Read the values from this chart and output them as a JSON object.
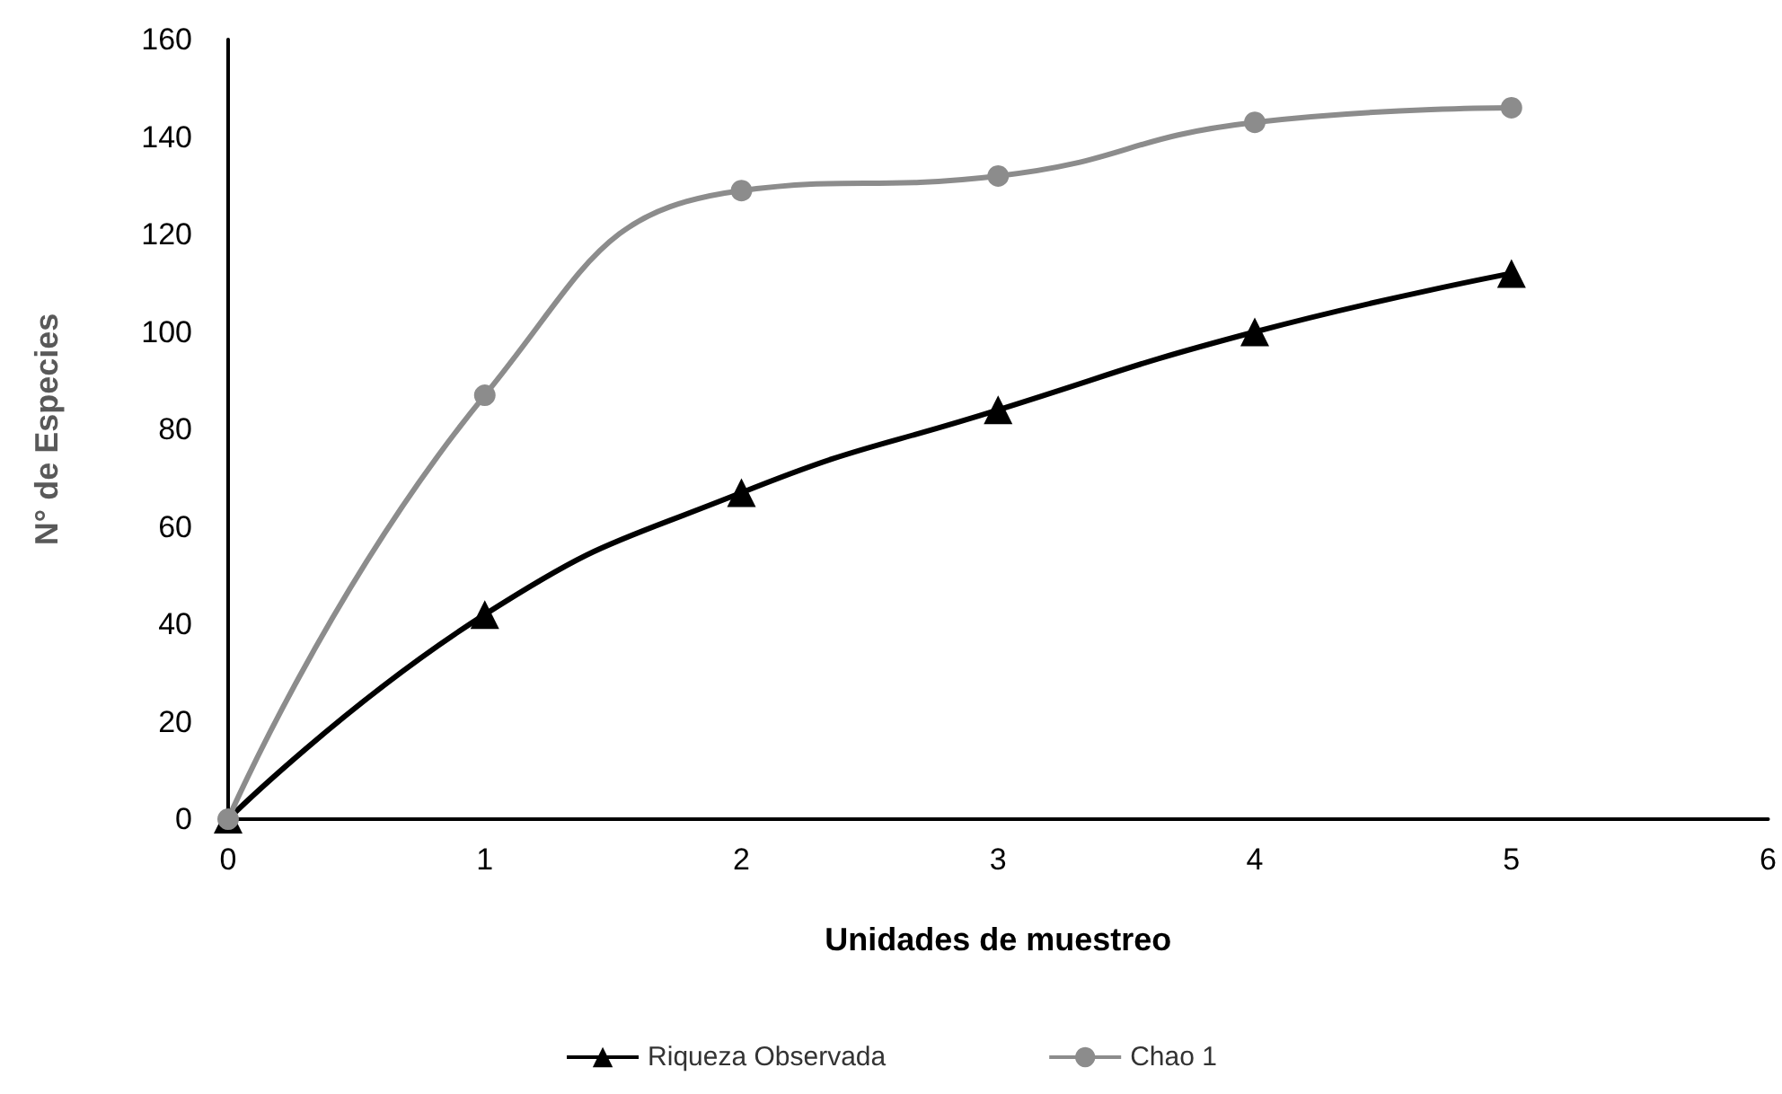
{
  "chart_data": {
    "type": "line",
    "xlabel": "Unidades de muestreo",
    "ylabel": "N° de Especies",
    "x": [
      0,
      1,
      2,
      3,
      4,
      5
    ],
    "series": [
      {
        "name": "Riqueza Observada",
        "color": "#000000",
        "marker": "triangle",
        "values": [
          0,
          42,
          67,
          84,
          100,
          112
        ]
      },
      {
        "name": "Chao 1",
        "color": "#8c8c8c",
        "marker": "circle",
        "values": [
          0,
          87,
          129,
          132,
          143,
          146
        ]
      }
    ],
    "xlim": [
      0,
      6
    ],
    "xticks": [
      0,
      1,
      2,
      3,
      4,
      5,
      6
    ],
    "ylim": [
      0,
      160
    ],
    "yticks": [
      0,
      20,
      40,
      60,
      80,
      100,
      120,
      140,
      160
    ],
    "grid": false,
    "legend": "bottom",
    "line_style": "solid"
  }
}
